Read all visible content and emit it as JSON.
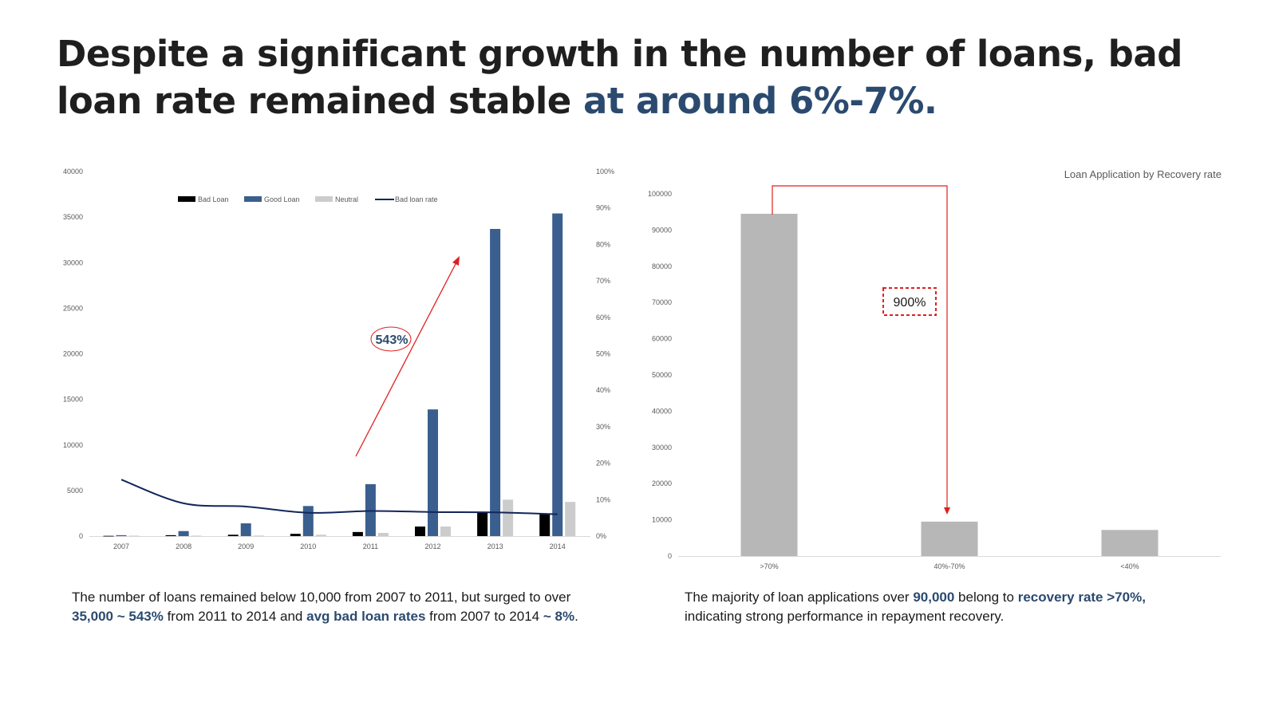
{
  "headline": {
    "part1": "Despite a significant growth in the number of loans, bad loan rate remained stable ",
    "part2": "at around 6%-7%."
  },
  "left_caption": {
    "t1": "The number of loans remained below 10,000 from 2007 to 2011, but surged to over ",
    "b1": "35,000 ~ 543%",
    "t2": " from 2011 to 2014 and ",
    "b2": "avg bad loan rates",
    "t3": " from 2007 to 2014 ",
    "b3": "~ 8%",
    "t4": "."
  },
  "right_caption": {
    "t1": "The majority of loan applications over ",
    "b1": "90,000",
    "t2": " belong to ",
    "b2": "recovery rate >70%,",
    "t3": " indicating strong performance in repayment recovery."
  },
  "colors": {
    "bad_loan": "#000000",
    "good_loan": "#3a5f8f",
    "neutral": "#cccccc",
    "rate_line": "#13265c",
    "recovery_bar": "#b7b7b7",
    "annotation": "#e0201f",
    "accent_text": "#2b4a6f"
  },
  "chart_data": [
    {
      "type": "bar",
      "categories": [
        "2007",
        "2008",
        "2009",
        "2010",
        "2011",
        "2012",
        "2013",
        "2014"
      ],
      "series": [
        {
          "name": "Bad Loan",
          "values": [
            30,
            100,
            150,
            250,
            450,
            1050,
            2650,
            2450
          ]
        },
        {
          "name": "Good Loan",
          "values": [
            100,
            550,
            1400,
            3300,
            5700,
            13900,
            33700,
            35400
          ]
        },
        {
          "name": "Neutral",
          "values": [
            50,
            50,
            60,
            150,
            350,
            1050,
            4000,
            3750
          ]
        },
        {
          "name": "Bad loan rate",
          "type": "line",
          "axis": "secondary",
          "values": [
            0.155,
            0.09,
            0.081,
            0.064,
            0.069,
            0.066,
            0.065,
            0.06
          ]
        }
      ],
      "ylim": [
        0,
        40000
      ],
      "yticks": [
        "0",
        "5000",
        "10000",
        "15000",
        "20000",
        "25000",
        "30000",
        "35000",
        "40000"
      ],
      "y2lim": [
        0,
        1
      ],
      "y2ticks": [
        "0%",
        "10%",
        "20%",
        "30%",
        "40%",
        "50%",
        "60%",
        "70%",
        "80%",
        "90%",
        "100%"
      ],
      "legend_position": "top",
      "grid": false,
      "annotation": {
        "label": "543%",
        "from_category": "2011",
        "to_category": "2013"
      }
    },
    {
      "type": "bar",
      "title": "Loan Application by Recovery rate",
      "categories": [
        ">70%",
        "40%-70%",
        "<40%"
      ],
      "values": [
        94500,
        9500,
        7200
      ],
      "ylim": [
        0,
        100000
      ],
      "yticks": [
        "0",
        "10000",
        "20000",
        "30000",
        "40000",
        "50000",
        "60000",
        "70000",
        "80000",
        "90000",
        "100000"
      ],
      "grid": false,
      "annotation": {
        "label": "900%",
        "from_category": ">70%",
        "to_category": "40%-70%"
      }
    }
  ]
}
